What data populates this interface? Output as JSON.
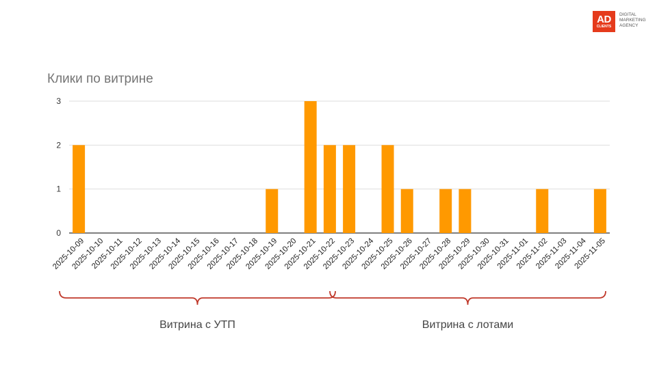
{
  "logo": {
    "mark": "AD",
    "mark_sub": "CLIENTS",
    "lines": [
      "DIGITAL",
      "MARKETING",
      "AGENCY"
    ],
    "color": "#e53b1c"
  },
  "chart_data": {
    "type": "bar",
    "title": "Клики по витрине",
    "xlabel": "",
    "ylabel": "",
    "ylim": [
      0,
      3
    ],
    "yticks": [
      0,
      1,
      2,
      3
    ],
    "grid": true,
    "bar_color": "#ff9900",
    "categories": [
      "2025-10-09",
      "2025-10-10",
      "2025-10-11",
      "2025-10-12",
      "2025-10-13",
      "2025-10-14",
      "2025-10-15",
      "2025-10-16",
      "2025-10-17",
      "2025-10-18",
      "2025-10-19",
      "2025-10-20",
      "2025-10-21",
      "2025-10-22",
      "2025-10-23",
      "2025-10-24",
      "2025-10-25",
      "2025-10-26",
      "2025-10-27",
      "2025-10-28",
      "2025-10-29",
      "2025-10-30",
      "2025-10-31",
      "2025-11-01",
      "2025-11-02",
      "2025-11-03",
      "2025-11-04",
      "2025-11-05"
    ],
    "values": [
      2,
      0,
      0,
      0,
      0,
      0,
      0,
      0,
      0,
      0,
      1,
      0,
      3,
      2,
      2,
      0,
      2,
      1,
      0,
      1,
      1,
      0,
      0,
      0,
      1,
      0,
      0,
      1
    ]
  },
  "groups": [
    {
      "label": "Витрина с УТП",
      "from": "2025-10-09",
      "to": "2025-10-22"
    },
    {
      "label": "Витрина с лотами",
      "from": "2025-10-23",
      "to": "2025-11-05"
    }
  ],
  "bracket_color": "#c0392b"
}
